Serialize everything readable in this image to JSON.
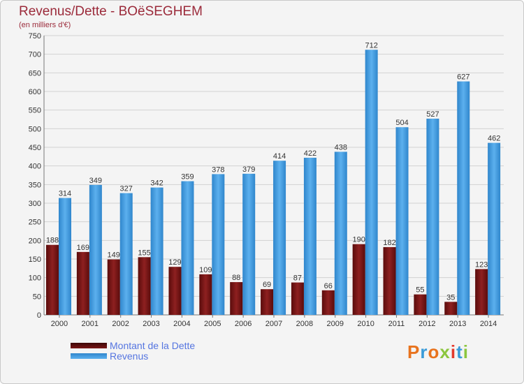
{
  "title": "Revenus/Dette - BOëSEGHEM",
  "subtitle": "(en milliers d'€)",
  "legend": {
    "debt_label": "Montant de la Dette",
    "revenue_label": "Revenus"
  },
  "logo": {
    "text": "Proxiti",
    "colors": [
      "#e8731e",
      "#3a9bd8",
      "#e8731e",
      "#8cc63e",
      "#e33a2c",
      "#3a9bd8",
      "#8cc63e"
    ]
  },
  "colors": {
    "debt": "#7a1515",
    "revenue": "#4ea3e3",
    "title": "#9b2a3a",
    "legend_text": "#5575e0"
  },
  "chart_data": {
    "type": "bar",
    "title": "Revenus/Dette - BOëSEGHEM",
    "ylabel": "(en milliers d'€)",
    "xlabel": "",
    "ylim": [
      0,
      750
    ],
    "ytick_step": 50,
    "grid": true,
    "legend_placement": "bottom-left",
    "categories": [
      "2000",
      "2001",
      "2002",
      "2003",
      "2004",
      "2005",
      "2006",
      "2007",
      "2008",
      "2009",
      "2010",
      "2011",
      "2012",
      "2013",
      "2014"
    ],
    "series": [
      {
        "name": "Montant de la Dette",
        "color": "#7a1515",
        "values": [
          188,
          169,
          149,
          155,
          129,
          109,
          88,
          69,
          87,
          66,
          190,
          182,
          55,
          35,
          123
        ]
      },
      {
        "name": "Revenus",
        "color": "#4ea3e3",
        "values": [
          314,
          349,
          327,
          342,
          359,
          378,
          379,
          414,
          422,
          438,
          712,
          504,
          527,
          627,
          462
        ]
      }
    ]
  }
}
